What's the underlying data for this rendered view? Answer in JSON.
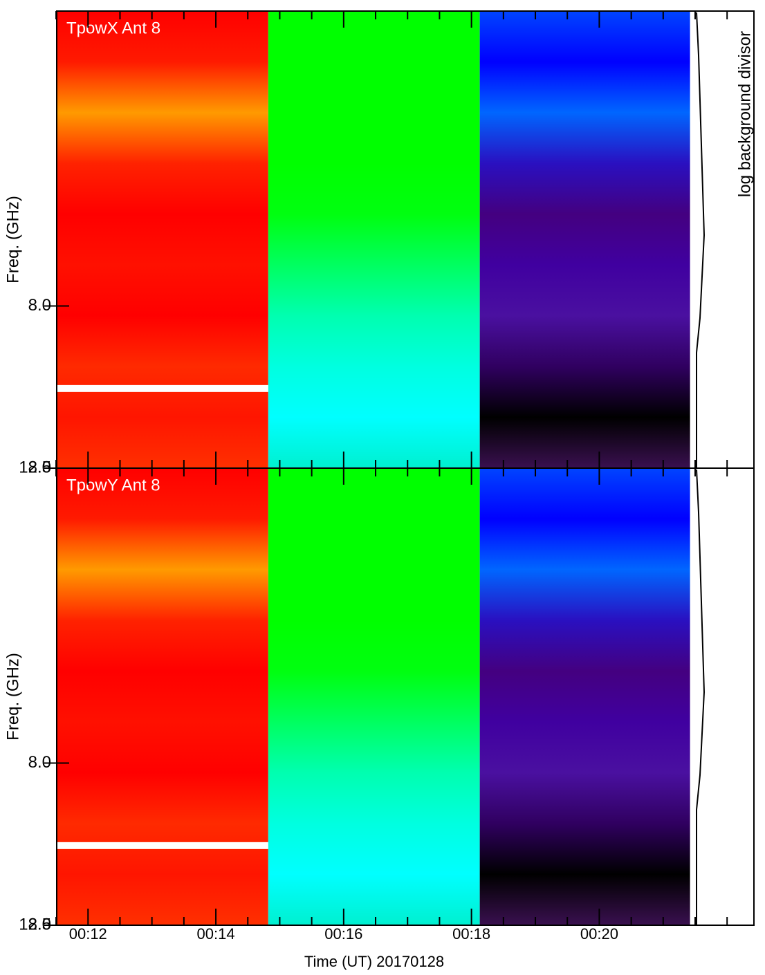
{
  "chart_data": {
    "type": "heatmap",
    "xlabel": "Time (UT) 20170128",
    "ylabel": "Freq. (GHz)",
    "side_label": "log background divisor",
    "xlim": [
      11.51,
      22.42
    ],
    "xticks": [
      {
        "value": 12,
        "label": "00:12"
      },
      {
        "value": 14,
        "label": "00:14"
      },
      {
        "value": 16,
        "label": "00:16"
      },
      {
        "value": 18,
        "label": "00:18"
      },
      {
        "value": 20,
        "label": "00:20"
      }
    ],
    "xminorticks": [
      11.5,
      12.5,
      13,
      13.5,
      14.5,
      15,
      15.5,
      16.5,
      17,
      17.5,
      18.5,
      19,
      19.5,
      20.5,
      21,
      21.5,
      22
    ],
    "ylim": [
      2.5,
      18.0
    ],
    "yticks": [
      2.5,
      {
        "value": 8,
        "label": "8.0"
      }
    ],
    "y_end_label": "18.0",
    "panels": [
      {
        "title": "TpowX Ant 8",
        "gap_freq": 5.2,
        "blocks": [
          {
            "start": 11.51,
            "end": 14.82,
            "stops": [
              "#ff0000",
              "#ff1a00",
              "#ff9a00",
              "#ff2200",
              "#ff0000",
              "#ff1000",
              "#ff0000",
              "#ff2a00",
              "#ff1500",
              "#ff3000"
            ]
          },
          {
            "start": 14.82,
            "end": 18.13,
            "stops": [
              "#00ff00",
              "#00ff00",
              "#00ff00",
              "#00ff00",
              "#00ff10",
              "#00ff60",
              "#00ffb0",
              "#00ffe0",
              "#00ffff",
              "#00f0d0"
            ]
          },
          {
            "start": 18.13,
            "end": 21.42,
            "stops": [
              "#0044ff",
              "#0000ff",
              "#0066ff",
              "#2a10c0",
              "#440080",
              "#4000a0",
              "#4a10a0",
              "#300060",
              "#000000",
              "#3a1050"
            ]
          }
        ]
      },
      {
        "title": "TpowY Ant 8",
        "gap_freq": 5.2,
        "blocks": [
          {
            "start": 11.51,
            "end": 14.82,
            "stops": [
              "#ff0000",
              "#ff1a00",
              "#ff9a00",
              "#ff2200",
              "#ff0000",
              "#ff1000",
              "#ff0000",
              "#ff2a00",
              "#ff1500",
              "#ff3000"
            ]
          },
          {
            "start": 14.82,
            "end": 18.13,
            "stops": [
              "#00ff00",
              "#00ff00",
              "#00ff00",
              "#00ff00",
              "#00ff10",
              "#00ff60",
              "#00ffb0",
              "#00ffe0",
              "#00ffff",
              "#00f0d0"
            ]
          },
          {
            "start": 18.13,
            "end": 21.42,
            "stops": [
              "#0044ff",
              "#0000ff",
              "#0066ff",
              "#2a10c0",
              "#440080",
              "#4000a0",
              "#4a10a0",
              "#300060",
              "#000000",
              "#3a1050"
            ]
          }
        ]
      }
    ]
  }
}
